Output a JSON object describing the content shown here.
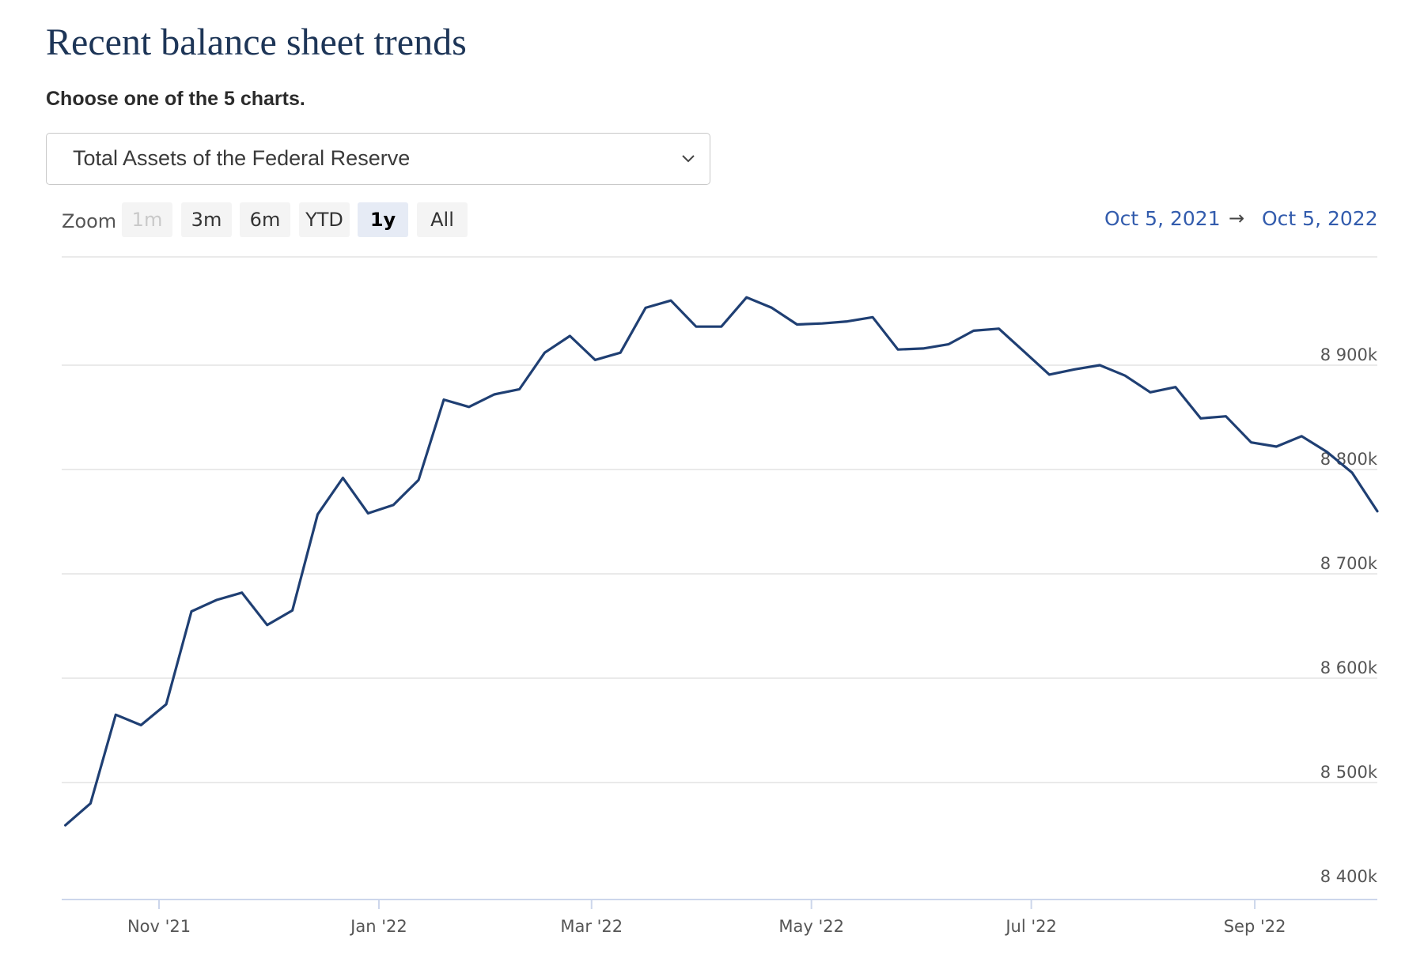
{
  "page": {
    "title": "Recent balance sheet trends",
    "chooser_label": "Choose one of the 5 charts."
  },
  "select": {
    "value": "Total Assets of the Federal Reserve",
    "icon": "chevron-down-icon"
  },
  "zoom": {
    "label": "Zoom",
    "buttons": [
      {
        "label": "1m",
        "state": "disabled"
      },
      {
        "label": "3m",
        "state": "normal"
      },
      {
        "label": "6m",
        "state": "normal"
      },
      {
        "label": "YTD",
        "state": "normal"
      },
      {
        "label": "1y",
        "state": "active"
      },
      {
        "label": "All",
        "state": "normal"
      }
    ]
  },
  "range": {
    "from": "Oct 5, 2021",
    "arrow": "→",
    "to": "Oct 5, 2022"
  },
  "colors": {
    "title": "#1d3557",
    "series_line": "#1f3f73",
    "range_text": "#335cad",
    "grid": "#e3e3e3"
  },
  "chart_data": {
    "type": "line",
    "title": "",
    "xlabel": "",
    "ylabel": "",
    "ylim": [
      8400000,
      9000000
    ],
    "ytick_values": [
      8400000,
      8500000,
      8600000,
      8700000,
      8800000,
      8900000
    ],
    "ytick_labels": [
      "8 400k",
      "8 500k",
      "8 600k",
      "8 700k",
      "8 800k",
      "8 900k"
    ],
    "xlim": [
      "2021-10-05",
      "2022-10-05"
    ],
    "xtick_dates": [
      "2021-11-01",
      "2022-01-01",
      "2022-03-01",
      "2022-05-01",
      "2022-07-01",
      "2022-09-01"
    ],
    "xtick_labels": [
      "Nov '21",
      "Jan '22",
      "Mar '22",
      "May '22",
      "Jul '22",
      "Sep '22"
    ],
    "grid": true,
    "series": [
      {
        "x": [
          "2021-10-06",
          "2021-10-13",
          "2021-10-20",
          "2021-10-27",
          "2021-11-03",
          "2021-11-10",
          "2021-11-17",
          "2021-11-24",
          "2021-12-01",
          "2021-12-08",
          "2021-12-15",
          "2021-12-22",
          "2021-12-29",
          "2022-01-05",
          "2022-01-12",
          "2022-01-19",
          "2022-01-26",
          "2022-02-02",
          "2022-02-09",
          "2022-02-16",
          "2022-02-23",
          "2022-03-02",
          "2022-03-09",
          "2022-03-16",
          "2022-03-23",
          "2022-03-30",
          "2022-04-06",
          "2022-04-13",
          "2022-04-20",
          "2022-04-27",
          "2022-05-04",
          "2022-05-11",
          "2022-05-18",
          "2022-05-25",
          "2022-06-01",
          "2022-06-08",
          "2022-06-15",
          "2022-06-22",
          "2022-06-29",
          "2022-07-06",
          "2022-07-13",
          "2022-07-20",
          "2022-07-27",
          "2022-08-03",
          "2022-08-10",
          "2022-08-17",
          "2022-08-24",
          "2022-08-31",
          "2022-09-07",
          "2022-09-14",
          "2022-09-21",
          "2022-09-28",
          "2022-10-05"
        ],
        "values": [
          8459000,
          8480000,
          8565000,
          8555000,
          8575000,
          8664000,
          8675000,
          8682000,
          8651000,
          8665000,
          8757000,
          8792000,
          8758000,
          8766000,
          8790000,
          8867000,
          8860000,
          8872000,
          8877000,
          8912000,
          8928000,
          8905000,
          8912000,
          8955000,
          8962000,
          8937000,
          8937000,
          8965000,
          8955000,
          8939000,
          8940000,
          8942000,
          8946000,
          8915000,
          8916000,
          8920000,
          8933000,
          8935000,
          8913000,
          8891000,
          8896000,
          8900000,
          8890000,
          8874000,
          8879000,
          8849000,
          8851000,
          8826000,
          8822000,
          8832000,
          8817000,
          8797000,
          8760000
        ]
      }
    ]
  }
}
